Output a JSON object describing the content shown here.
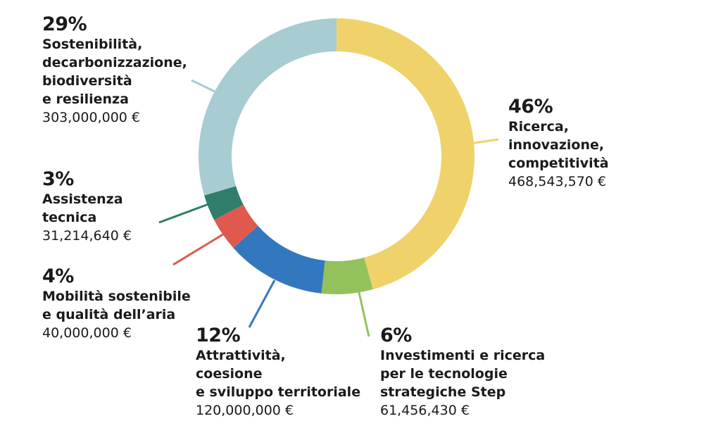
{
  "chart_data": {
    "type": "pie",
    "style": "donut",
    "title": "",
    "slices": [
      {
        "key": "ricerca",
        "percent": "46%",
        "name": "Ricerca,\ninnovazione,\ncompetitività",
        "amount": "468,543,570 €",
        "value": 468543570,
        "color": "#EFD36A"
      },
      {
        "key": "step",
        "percent": "6%",
        "name": "Investimenti e ricerca\nper le tecnologie\nstrategiche Step",
        "amount": "61,456,430 €",
        "value": 61456430,
        "color": "#93C25D"
      },
      {
        "key": "attrattivita",
        "percent": "12%",
        "name": "Attrattività,\ncoesione\ne sviluppo territoriale",
        "amount": "120,000,000 €",
        "value": 120000000,
        "color": "#3378BF"
      },
      {
        "key": "mobilita",
        "percent": "4%",
        "name": "Mobilità sostenibile\ne qualità dell’aria",
        "amount": "40,000,000 €",
        "value": 40000000,
        "color": "#E0594F"
      },
      {
        "key": "assistenza",
        "percent": "3%",
        "name": "Assistenza\ntecnica",
        "amount": "31,214,640 €",
        "value": 31214640,
        "color": "#307D6C"
      },
      {
        "key": "sostenibilita",
        "percent": "29%",
        "name": "Sostenibilità,\ndecarbonizzazione,\nbiodiversità\ne resilienza",
        "amount": "303,000,000 €",
        "value": 303000000,
        "color": "#A7CCD2"
      }
    ]
  }
}
